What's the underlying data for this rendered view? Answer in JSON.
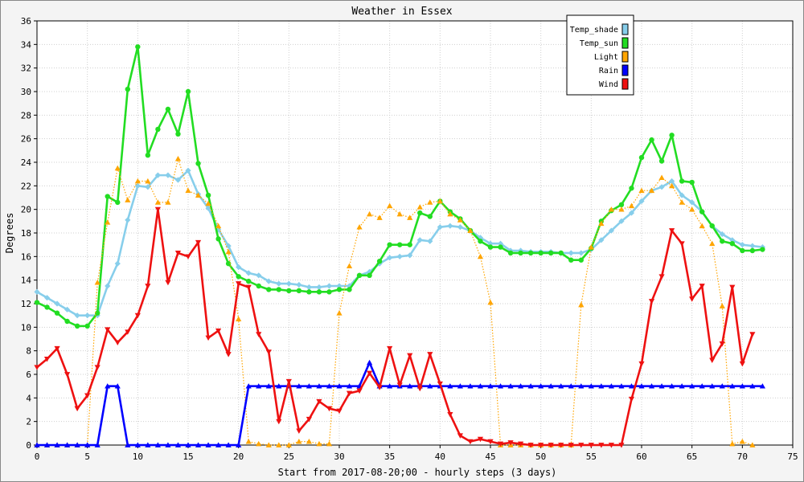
{
  "chart_data": {
    "type": "line",
    "title": "Weather in Essex",
    "xlabel": "Start from 2017-08-20;00 - hourly steps (3 days)",
    "ylabel": "Degrees",
    "xlim": [
      0,
      75
    ],
    "ylim": [
      0,
      36
    ],
    "xticks": [
      0,
      5,
      10,
      15,
      20,
      25,
      30,
      35,
      40,
      45,
      50,
      55,
      60,
      65,
      70,
      75
    ],
    "yticks": [
      0,
      2,
      4,
      6,
      8,
      10,
      12,
      14,
      16,
      18,
      20,
      22,
      24,
      26,
      28,
      30,
      32,
      34,
      36
    ],
    "grid": true,
    "legend_position": "top-right",
    "series": [
      {
        "name": "Temp_shade",
        "color": "#87ceeb",
        "marker": "diamond",
        "style": "solid",
        "values": [
          13.0,
          12.5,
          12.0,
          11.5,
          11.0,
          11.0,
          11.0,
          13.5,
          15.4,
          19.1,
          22.0,
          21.9,
          22.9,
          22.9,
          22.5,
          23.3,
          21.3,
          20.1,
          18.3,
          16.9,
          15.1,
          14.6,
          14.4,
          13.9,
          13.7,
          13.7,
          13.6,
          13.4,
          13.4,
          13.5,
          13.5,
          13.5,
          14.4,
          14.7,
          15.4,
          15.9,
          16.0,
          16.1,
          17.4,
          17.3,
          18.5,
          18.6,
          18.5,
          18.2,
          17.6,
          17.1,
          17.1,
          16.5,
          16.5,
          16.4,
          16.4,
          16.4,
          16.3,
          16.3,
          16.3,
          16.6,
          17.4,
          18.2,
          19.0,
          19.7,
          20.7,
          21.6,
          21.9,
          22.4,
          21.2,
          20.6,
          19.8,
          18.6,
          17.9,
          17.4,
          17.0,
          16.9,
          16.8
        ]
      },
      {
        "name": "Temp_sun",
        "color": "#22dd22",
        "marker": "circle",
        "style": "solid",
        "values": [
          12.1,
          11.7,
          11.2,
          10.5,
          10.1,
          10.1,
          11.2,
          21.1,
          20.6,
          30.2,
          33.8,
          24.6,
          26.8,
          28.5,
          26.4,
          30.0,
          23.9,
          21.2,
          17.5,
          15.4,
          14.3,
          13.9,
          13.5,
          13.2,
          13.2,
          13.1,
          13.1,
          13.0,
          13.0,
          13.0,
          13.2,
          13.2,
          14.4,
          14.4,
          15.6,
          17.0,
          17.0,
          17.0,
          19.7,
          19.4,
          20.7,
          19.8,
          19.2,
          18.2,
          17.3,
          16.8,
          16.8,
          16.3,
          16.3,
          16.3,
          16.3,
          16.3,
          16.3,
          15.7,
          15.7,
          16.7,
          19.0,
          19.9,
          20.4,
          21.8,
          24.4,
          25.9,
          24.1,
          26.3,
          22.4,
          22.3,
          19.8,
          18.6,
          17.3,
          17.1,
          16.5,
          16.5,
          16.6
        ]
      },
      {
        "name": "Light",
        "color": "#ffa500",
        "marker": "triangle-up",
        "style": "dotted",
        "values": [
          0,
          0,
          0,
          0,
          0,
          0,
          13.8,
          18.9,
          23.5,
          20.8,
          22.4,
          22.4,
          20.6,
          20.6,
          24.3,
          21.6,
          21.2,
          20.5,
          18.6,
          16.4,
          10.7,
          0.3,
          0.1,
          0,
          0,
          0,
          0.3,
          0.3,
          0.1,
          0.1,
          11.2,
          15.2,
          18.5,
          19.6,
          19.3,
          20.3,
          19.6,
          19.3,
          20.2,
          20.6,
          20.7,
          19.6,
          19.1,
          18.2,
          16.0,
          12.1,
          0,
          0,
          0,
          0,
          0,
          0,
          0,
          0,
          11.9,
          16.8,
          18.8,
          20.0,
          20.0,
          20.3,
          21.6,
          21.6,
          22.7,
          22.0,
          20.6,
          20.0,
          18.6,
          17.1,
          11.8,
          0.1,
          0.3,
          0
        ]
      },
      {
        "name": "Rain",
        "color": "#0000ff",
        "marker": "triangle-up",
        "style": "solid",
        "values": [
          0,
          0,
          0,
          0,
          0,
          0,
          0,
          5,
          5,
          0,
          0,
          0,
          0,
          0,
          0,
          0,
          0,
          0,
          0,
          0,
          0,
          5,
          5,
          5,
          5,
          5,
          5,
          5,
          5,
          5,
          5,
          5,
          5,
          7,
          5,
          5,
          5,
          5,
          5,
          5,
          5,
          5,
          5,
          5,
          5,
          5,
          5,
          5,
          5,
          5,
          5,
          5,
          5,
          5,
          5,
          5,
          5,
          5,
          5,
          5,
          5,
          5,
          5,
          5,
          5,
          5,
          5,
          5,
          5,
          5,
          5,
          5,
          5
        ]
      },
      {
        "name": "Wind",
        "color": "#ee1111",
        "marker": "triangle-down",
        "style": "solid",
        "values": [
          6.6,
          7.3,
          8.2,
          6.0,
          3.1,
          4.2,
          6.6,
          9.8,
          8.7,
          9.6,
          11.0,
          13.5,
          20.0,
          13.8,
          16.3,
          16.0,
          17.2,
          9.1,
          9.7,
          7.7,
          13.7,
          13.4,
          9.4,
          7.9,
          2.0,
          5.4,
          1.2,
          2.2,
          3.7,
          3.1,
          2.9,
          4.4,
          4.6,
          6.1,
          4.9,
          8.2,
          5.1,
          7.6,
          4.8,
          7.7,
          5.2,
          2.6,
          0.8,
          0.3,
          0.5,
          0.3,
          0.1,
          0.2,
          0.1,
          0,
          0,
          0,
          0,
          0,
          0,
          0,
          0,
          0,
          0,
          3.9,
          6.9,
          12.2,
          14.3,
          18.2,
          17.1,
          12.4,
          13.5,
          7.2,
          8.6,
          13.4,
          6.9,
          9.4
        ]
      }
    ]
  }
}
